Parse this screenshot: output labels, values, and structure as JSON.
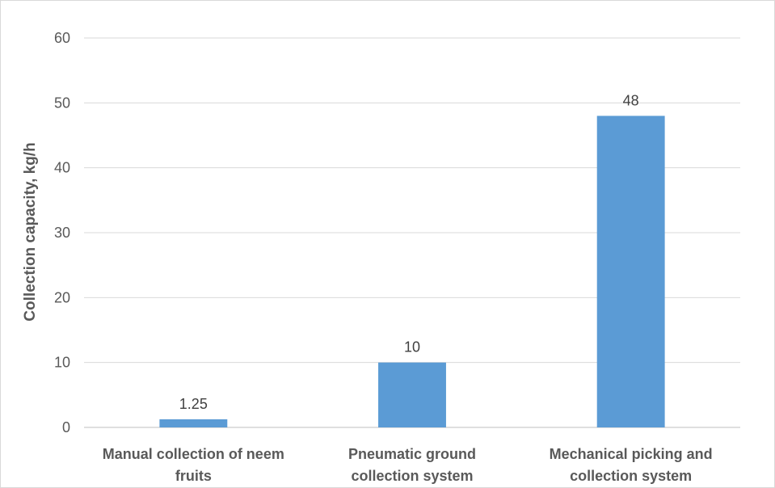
{
  "chart_data": {
    "type": "bar",
    "title": "",
    "xlabel": "",
    "ylabel": "Collection capacity, kg/h",
    "ylim": [
      0,
      60
    ],
    "yticks": [
      0,
      10,
      20,
      30,
      40,
      50,
      60
    ],
    "grid": true,
    "legend": "none",
    "categories": [
      [
        "Manual collection of neem",
        "fruits"
      ],
      [
        "Pneumatic ground",
        "collection system"
      ],
      [
        "Mechanical picking and",
        "collection system"
      ]
    ],
    "values": [
      1.25,
      10,
      48
    ],
    "data_labels": [
      "1.25",
      "10",
      "48"
    ],
    "colors": {
      "bar": "#5B9BD5",
      "grid": "#d9d9d9",
      "axis": "#bfbfbf"
    }
  }
}
